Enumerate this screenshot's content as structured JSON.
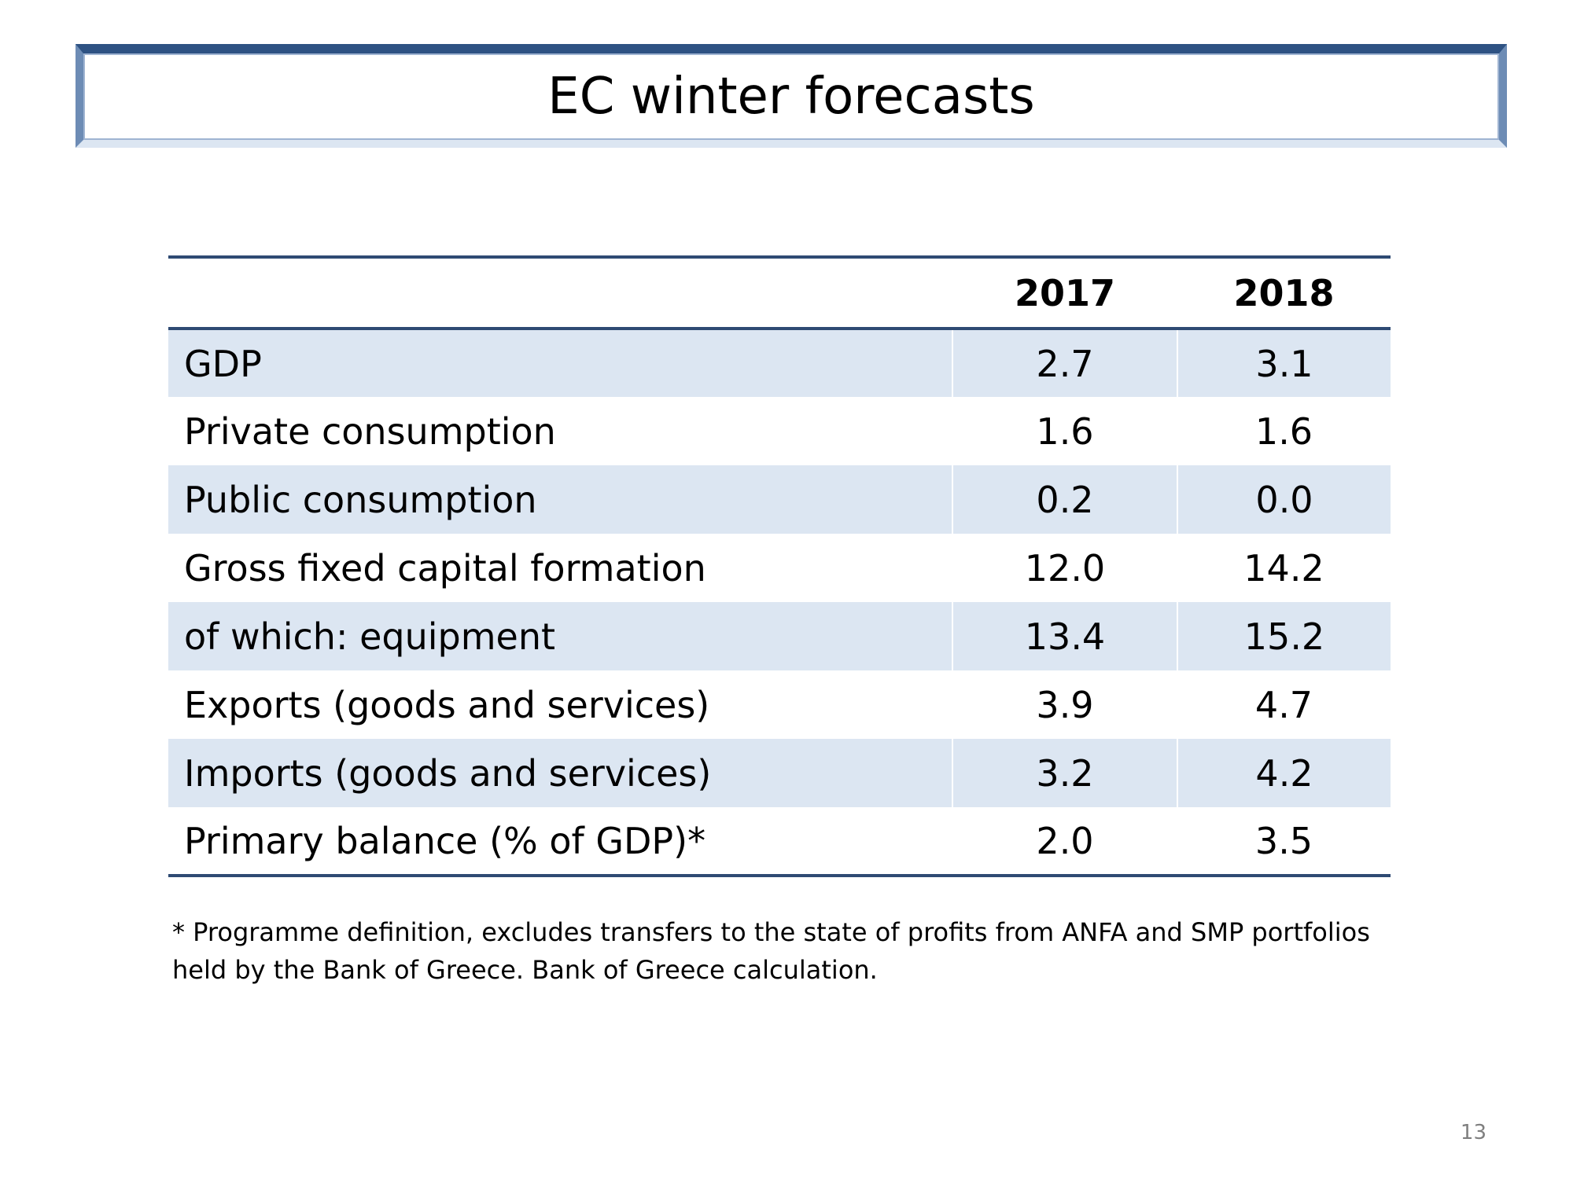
{
  "title": "EC winter forecasts",
  "table": {
    "headers": [
      "",
      "2017",
      "2018"
    ],
    "rows": [
      {
        "label": "GDP",
        "values": [
          "2.7",
          "3.1"
        ]
      },
      {
        "label": "Private consumption",
        "values": [
          "1.6",
          "1.6"
        ]
      },
      {
        "label": "Public consumption",
        "values": [
          "0.2",
          "0.0"
        ]
      },
      {
        "label": "Gross fixed capital formation",
        "values": [
          "12.0",
          "14.2"
        ]
      },
      {
        "label": "of which: equipment",
        "values": [
          "13.4",
          "15.2"
        ]
      },
      {
        "label": "Exports (goods and services)",
        "values": [
          "3.9",
          "4.7"
        ]
      },
      {
        "label": "Imports (goods and services)",
        "values": [
          "3.2",
          "4.2"
        ]
      },
      {
        "label": "Primary balance (% of GDP)*",
        "values": [
          "2.0",
          "3.5"
        ]
      }
    ]
  },
  "footnote": {
    "line1": "* Programme definition, excludes transfers to the state of profits from ANFA and SMP portfolios",
    "line2": "held by the Bank of Greece. Bank of Greece calculation."
  },
  "page_number": "13",
  "colors": {
    "header_rule": "#2e4a73",
    "row_shade": "#dce6f2",
    "title_border": "#2e5283"
  }
}
